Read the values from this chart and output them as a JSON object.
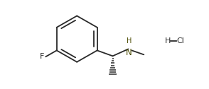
{
  "background_color": "#ffffff",
  "bond_color": "#2a2a2a",
  "N_color": "#4a4a00",
  "figsize": [
    2.94,
    1.26
  ],
  "dpi": 100,
  "F_label": "F",
  "H_label": "H",
  "N_label": "N",
  "Cl_label": "Cl",
  "lw": 1.3
}
